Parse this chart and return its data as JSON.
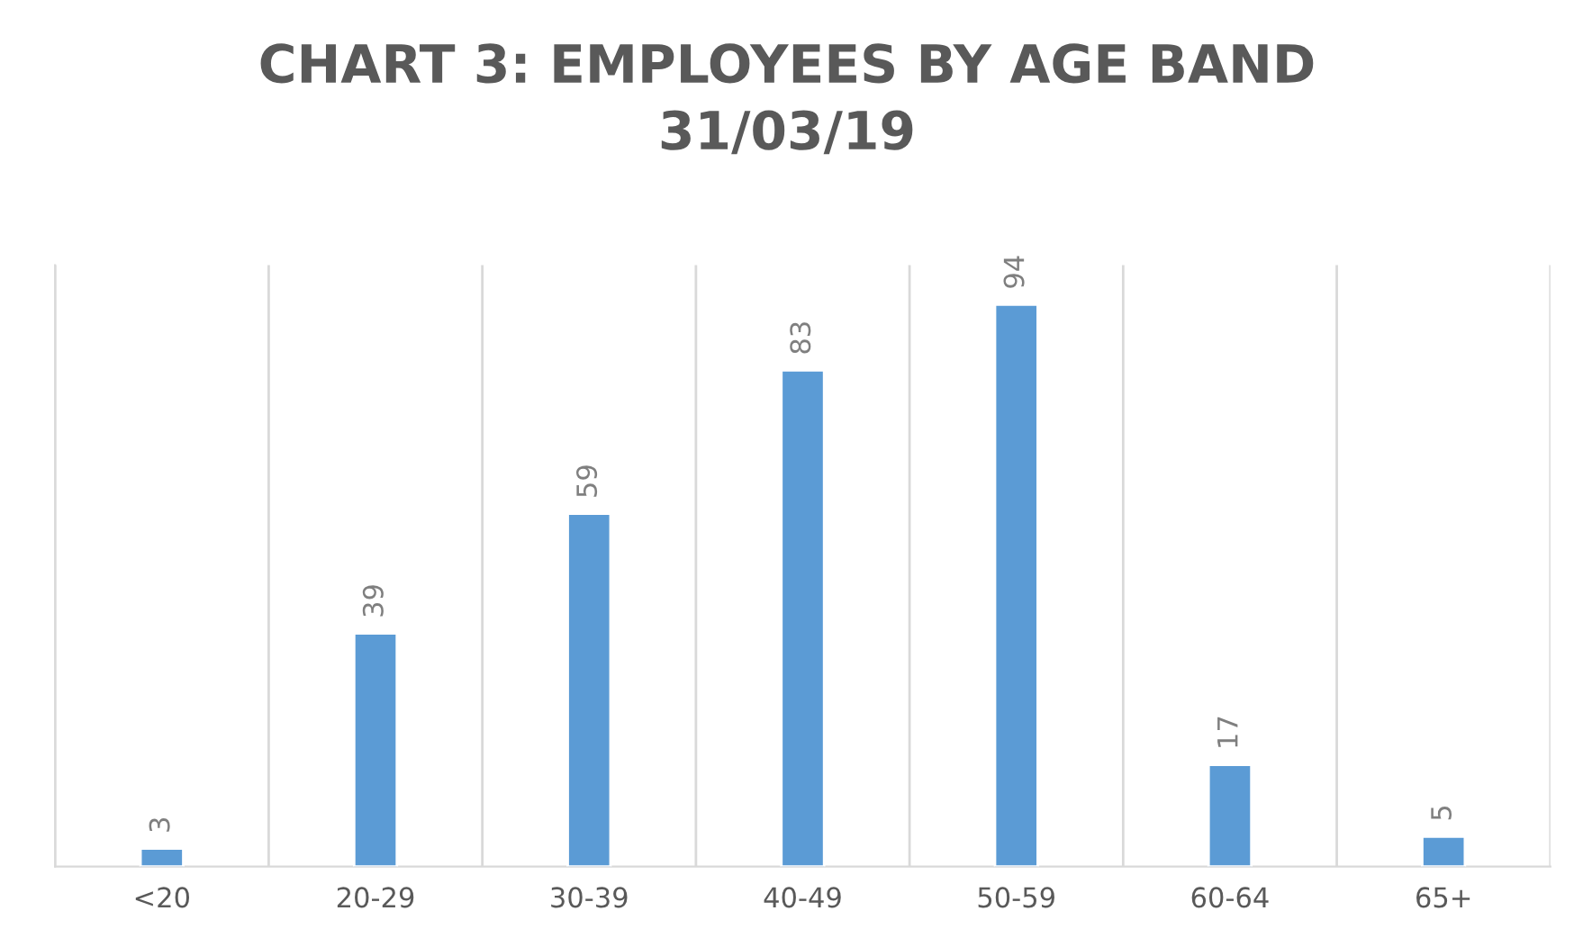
{
  "chart_data": {
    "type": "bar",
    "title": "CHART 3: EMPLOYEES BY AGE BAND\n31/03/19",
    "categories": [
      "<20",
      "20-29",
      "30-39",
      "40-49",
      "50-59",
      "60-64",
      "65+"
    ],
    "values": [
      3,
      39,
      59,
      83,
      94,
      17,
      5
    ],
    "color": "#5b9bd5",
    "data_labels": true,
    "grid": "x"
  }
}
